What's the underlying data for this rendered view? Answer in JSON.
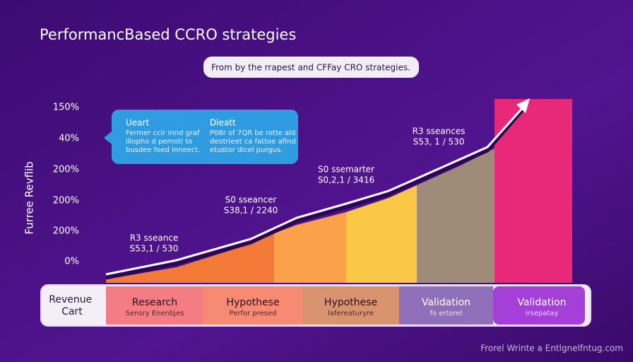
{
  "header": {
    "title": "PerformancBased CCRO strategies",
    "subtitle": "From by the rrapest and CFFay CRO strategies."
  },
  "axis": {
    "label": "Furree Revflib",
    "ticks": [
      "150%",
      "40%",
      "200%",
      "200%",
      "200%",
      "0%"
    ]
  },
  "callout": {
    "left_title": "Ueart",
    "left_lines": [
      "Fermer ccir innd graf",
      "illopho d pemoti to",
      "busdee foed inneect."
    ],
    "right_title": "Dieatt",
    "right_lines": [
      "P08r of 7QR be rotte ald",
      "deotrieet ca fattoe afind",
      "etustor dicel purgus."
    ]
  },
  "annotations": [
    {
      "name": "R3 sseance",
      "value": "S53,1 / 530"
    },
    {
      "name": "S0 sseancer",
      "value": "S38,1 / 2240"
    },
    {
      "name": "S0 ssemarter",
      "value": "S0,2,1 / 3416"
    },
    {
      "name": "R3 sseances",
      "value": "S53, 1 / 530"
    }
  ],
  "table": {
    "label": "Revenue Cart",
    "stages": [
      {
        "title": "Research",
        "subtitle": "Sensry Enenbjes"
      },
      {
        "title": "Hypothese",
        "subtitle": "Perfor presed"
      },
      {
        "title": "Hypothese",
        "subtitle": "lafereaturyre"
      },
      {
        "title": "Validation",
        "subtitle": "fo ertorel"
      },
      {
        "title": "Validation",
        "subtitle": "irsepatay"
      }
    ]
  },
  "footer": "Frorel Wrinte a Entlgnelfntug.com"
}
